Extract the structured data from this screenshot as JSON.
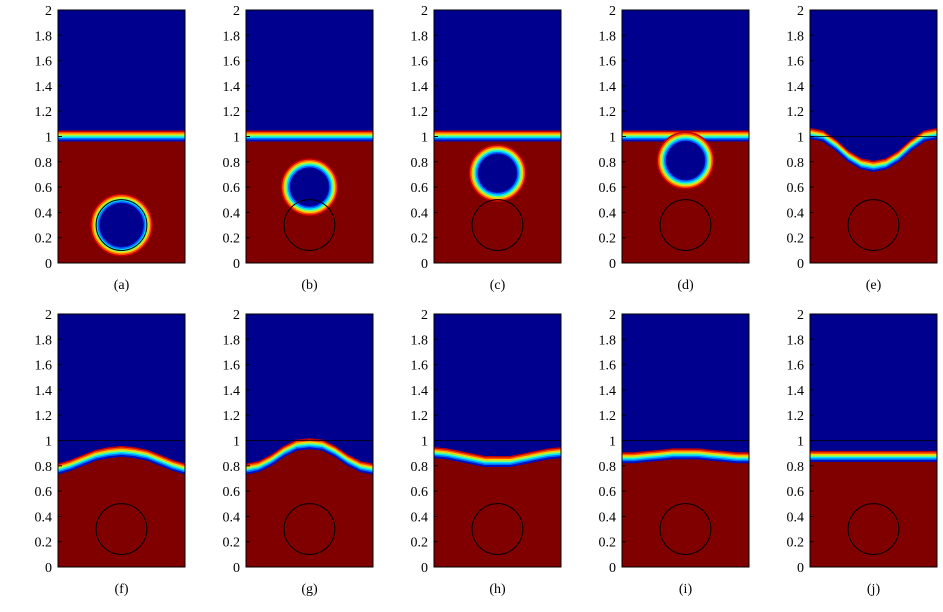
{
  "chart_data": {
    "type": "heatmap",
    "title": "",
    "xlabel": "",
    "ylabel": "",
    "xlim": [
      0,
      1
    ],
    "ylim": [
      0,
      2
    ],
    "yticks": [
      "0",
      "0.2",
      "0.4",
      "0.6",
      "0.8",
      "1",
      "1.2",
      "1.4",
      "1.6",
      "1.8",
      "2"
    ],
    "colors": {
      "upper_phase": "#00008f",
      "lower_phase": "#800000"
    },
    "reference_circle": {
      "cx": 0.5,
      "cy": 0.3,
      "r": 0.2
    },
    "reference_line_y": 1.0,
    "panels": [
      {
        "label": "(a)",
        "interface": [
          1,
          1,
          1,
          1,
          1,
          1,
          1,
          1,
          1,
          1,
          1
        ],
        "bubble": {
          "cx": 0.5,
          "cy": 0.3,
          "r": 0.2
        },
        "show_circle": true,
        "show_line": false
      },
      {
        "label": "(b)",
        "interface": [
          1,
          1,
          1,
          1,
          1,
          1,
          1,
          1,
          1,
          1,
          1
        ],
        "bubble": {
          "cx": 0.5,
          "cy": 0.6,
          "r": 0.18
        },
        "show_circle": true,
        "show_line": false
      },
      {
        "label": "(c)",
        "interface": [
          1,
          1,
          1,
          1,
          1,
          1,
          1,
          1,
          1,
          1,
          1
        ],
        "bubble": {
          "cx": 0.5,
          "cy": 0.71,
          "r": 0.18
        },
        "show_circle": true,
        "show_line": false
      },
      {
        "label": "(d)",
        "interface": [
          1,
          1,
          1,
          1,
          1,
          1,
          1,
          1,
          1,
          1,
          1
        ],
        "bubble": {
          "cx": 0.5,
          "cy": 0.81,
          "r": 0.18
        },
        "show_circle": true,
        "show_line": false
      },
      {
        "label": "(e)",
        "interface": [
          1.02,
          1.0,
          0.93,
          0.84,
          0.78,
          0.76,
          0.78,
          0.84,
          0.93,
          1.0,
          1.02
        ],
        "bubble": null,
        "show_circle": true,
        "show_line": true
      },
      {
        "label": "(f)",
        "interface": [
          0.77,
          0.8,
          0.84,
          0.88,
          0.9,
          0.91,
          0.9,
          0.88,
          0.84,
          0.8,
          0.77
        ],
        "bubble": null,
        "show_circle": true,
        "show_line": true
      },
      {
        "label": "(g)",
        "interface": [
          0.77,
          0.79,
          0.84,
          0.91,
          0.96,
          0.97,
          0.96,
          0.91,
          0.84,
          0.79,
          0.77
        ],
        "bubble": null,
        "show_circle": true,
        "show_line": true
      },
      {
        "label": "(h)",
        "interface": [
          0.9,
          0.89,
          0.87,
          0.85,
          0.83,
          0.83,
          0.83,
          0.85,
          0.87,
          0.89,
          0.9
        ],
        "bubble": null,
        "show_circle": true,
        "show_line": true
      },
      {
        "label": "(i)",
        "interface": [
          0.86,
          0.86,
          0.87,
          0.88,
          0.89,
          0.89,
          0.89,
          0.88,
          0.87,
          0.86,
          0.86
        ],
        "bubble": null,
        "show_circle": true,
        "show_line": true
      },
      {
        "label": "(j)",
        "interface": [
          0.87,
          0.87,
          0.87,
          0.87,
          0.87,
          0.87,
          0.87,
          0.87,
          0.87,
          0.87,
          0.87
        ],
        "bubble": null,
        "show_circle": true,
        "show_line": true
      }
    ]
  }
}
